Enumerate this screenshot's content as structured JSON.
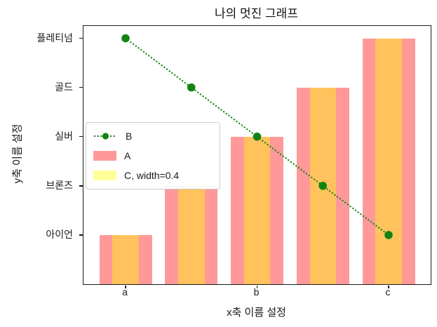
{
  "chart_data": {
    "type": "bar",
    "title": "나의 멋진 그래프",
    "xlabel": "x축 이름 설정",
    "ylabel": "y축 이름 설정",
    "x": [
      0,
      1,
      2,
      3,
      4
    ],
    "xlim": [
      -0.64,
      4.64
    ],
    "ylim": [
      0,
      5.25
    ],
    "grid": false,
    "xticks": {
      "positions": [
        0,
        2,
        4
      ],
      "labels": [
        "a",
        "b",
        "c"
      ]
    },
    "yticks": {
      "positions": [
        1,
        2,
        3,
        4,
        5
      ],
      "labels": [
        "아이언",
        "브론즈",
        "실버",
        "골드",
        "플레티넘"
      ]
    },
    "series": [
      {
        "name": "A",
        "kind": "bar",
        "bar_width": 0.8,
        "color": "rgba(255,0,0,0.4)",
        "rendered_color": "#ff9999",
        "values": [
          1,
          2,
          3,
          4,
          5
        ]
      },
      {
        "name": "C, width=0.4",
        "kind": "bar",
        "bar_width": 0.4,
        "color": "rgba(255,255,0,0.4)",
        "rendered_color": "#ffff99",
        "overlap_color": "#ffc25c",
        "values": [
          1,
          2,
          3,
          4,
          5
        ]
      },
      {
        "name": "B",
        "kind": "line",
        "linestyle": "dotted",
        "marker": "circle",
        "color": "#128412",
        "values": [
          5,
          4,
          3,
          2,
          1
        ]
      }
    ],
    "legend": {
      "position": "center-left",
      "entries": [
        {
          "label": "B",
          "kind": "line",
          "color": "#128412"
        },
        {
          "label": "A",
          "kind": "patch",
          "color": "#ff9999"
        },
        {
          "label": "C, width=0.4",
          "kind": "patch",
          "color": "#ffff99"
        }
      ]
    },
    "spine_color": "#1a1a1a",
    "background_color": "#ffffff"
  }
}
